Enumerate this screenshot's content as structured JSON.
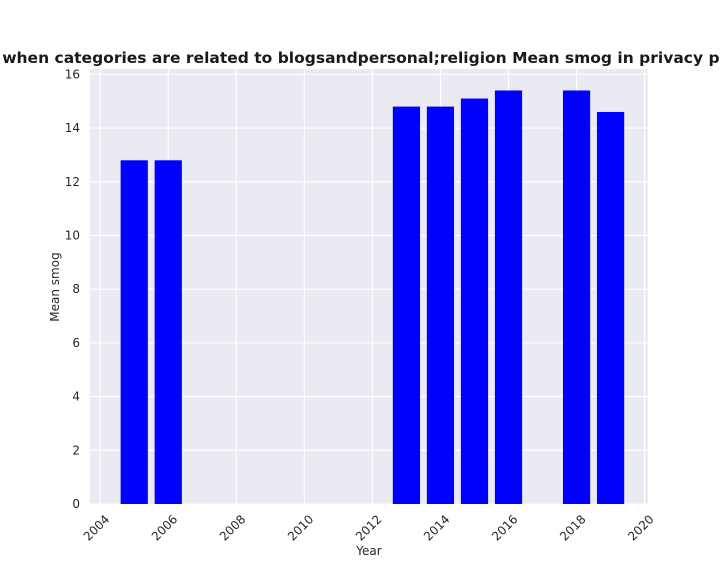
{
  "chart_data": {
    "type": "bar",
    "title": "Distribution when categories are related to blogsandpersonal;religion Mean smog in privacy policies by Year",
    "xlabel": "Year",
    "ylabel": "Mean smog",
    "x": [
      2005,
      2006,
      2013,
      2014,
      2015,
      2016,
      2018,
      2019
    ],
    "values": [
      12.8,
      12.8,
      14.8,
      14.8,
      15.1,
      15.4,
      15.4,
      14.6
    ],
    "xlim": [
      2003.7,
      2020.1
    ],
    "ylim": [
      0,
      16.2
    ],
    "xticks": [
      2004,
      2006,
      2008,
      2010,
      2012,
      2014,
      2016,
      2018,
      2020
    ],
    "yticks": [
      0,
      2,
      4,
      6,
      8,
      10,
      12,
      14,
      16
    ],
    "bar_color": "#0000ff",
    "plot_background": "#eaeaf2",
    "grid": true,
    "legend": "none"
  }
}
